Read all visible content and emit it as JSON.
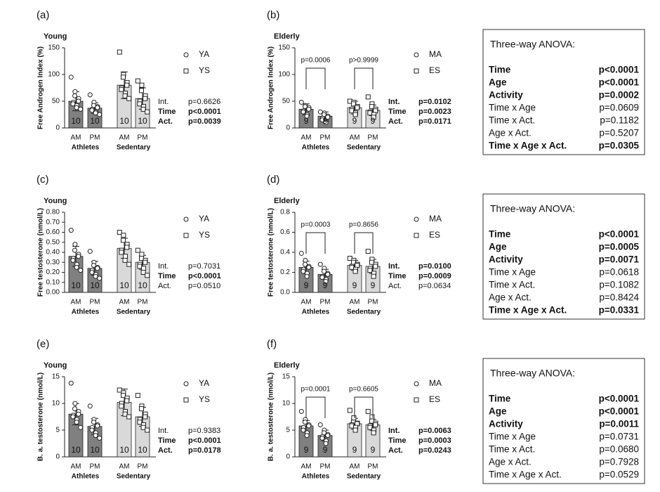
{
  "chart_data": [
    {
      "type": "bar",
      "panel": "(a)",
      "title": "Young",
      "y_label": "Free Androgen Index (%)",
      "ylim": [
        0,
        150
      ],
      "yticks": [
        0,
        50,
        100,
        150
      ],
      "categories": [
        "AM",
        "PM",
        "AM",
        "PM"
      ],
      "groups": [
        "Athletes",
        "Sedentary"
      ],
      "colors": [
        "#808080",
        "#808080",
        "#d9d9d9",
        "#d9d9d9"
      ],
      "values": [
        50,
        37,
        80,
        55
      ],
      "errors": [
        18,
        10,
        25,
        20
      ],
      "n": [
        10,
        10,
        10,
        10
      ],
      "points": [
        [
          95,
          68,
          60,
          55,
          50,
          48,
          45,
          42,
          38,
          35
        ],
        [
          62,
          48,
          42,
          40,
          38,
          35,
          33,
          30,
          28,
          25
        ],
        [
          142,
          100,
          95,
          85,
          80,
          75,
          72,
          65,
          60,
          55
        ],
        [
          88,
          80,
          70,
          60,
          55,
          50,
          45,
          40,
          35,
          30
        ]
      ],
      "legend": [
        {
          "marker": "circle",
          "label": "YA"
        },
        {
          "marker": "square",
          "label": "YS"
        }
      ],
      "stats": [
        {
          "label": "Int.",
          "value": "p=0.6626",
          "bold": false
        },
        {
          "label": "Time",
          "value": "p<0.0001",
          "bold": true
        },
        {
          "label": "Act.",
          "value": "p=0.0039",
          "bold": true
        }
      ]
    },
    {
      "type": "bar",
      "panel": "(b)",
      "title": "Elderly",
      "y_label": "Free Androgen Index (%)",
      "ylim": [
        0,
        150
      ],
      "yticks": [
        0,
        50,
        100,
        150
      ],
      "categories": [
        "AM",
        "PM",
        "AM",
        "PM"
      ],
      "groups": [
        "Athletes",
        "Sedentary"
      ],
      "colors": [
        "#808080",
        "#808080",
        "#d9d9d9",
        "#d9d9d9"
      ],
      "values": [
        35,
        22,
        38,
        33
      ],
      "errors": [
        10,
        8,
        12,
        10
      ],
      "n": [
        9,
        9,
        9,
        9
      ],
      "points": [
        [
          48,
          42,
          40,
          38,
          35,
          32,
          30,
          25,
          22
        ],
        [
          30,
          28,
          25,
          22,
          20,
          18,
          15,
          12,
          10
        ],
        [
          50,
          48,
          45,
          40,
          38,
          35,
          32,
          28,
          25
        ],
        [
          58,
          45,
          40,
          35,
          32,
          30,
          28,
          25,
          20
        ]
      ],
      "comparisons": [
        "p=0.0006",
        "p>0.9999"
      ],
      "legend": [
        {
          "marker": "circle",
          "label": "MA"
        },
        {
          "marker": "square",
          "label": "ES"
        }
      ],
      "stats": [
        {
          "label": "Int.",
          "value": "p=0.0102",
          "bold": true
        },
        {
          "label": "Time",
          "value": "p=0.0023",
          "bold": true
        },
        {
          "label": "Act.",
          "value": "p=0.0171",
          "bold": true
        }
      ]
    },
    {
      "type": "bar",
      "panel": "(c)",
      "title": "Young",
      "y_label": "Free testosterone (nmol/L)",
      "ylim": [
        0,
        0.8
      ],
      "yticks": [
        {
          "value": 0,
          "label": "0.00"
        },
        {
          "value": 0.1,
          "label": "0.10"
        },
        {
          "value": 0.2,
          "label": "0.20"
        },
        {
          "value": 0.3,
          "label": "0.30"
        },
        {
          "value": 0.4,
          "label": "0.40"
        },
        {
          "value": 0.5,
          "label": "0.50"
        },
        {
          "value": 0.6,
          "label": "0.60"
        },
        {
          "value": 0.7,
          "label": "0.70"
        },
        {
          "value": 0.8,
          "label": "0.80"
        }
      ],
      "categories": [
        "AM",
        "PM",
        "AM",
        "PM"
      ],
      "groups": [
        "Athletes",
        "Sedentary"
      ],
      "colors": [
        "#808080",
        "#808080",
        "#d9d9d9",
        "#d9d9d9"
      ],
      "values": [
        0.36,
        0.24,
        0.44,
        0.3
      ],
      "errors": [
        0.1,
        0.07,
        0.1,
        0.07
      ],
      "n": [
        10,
        10,
        10,
        10
      ],
      "points": [
        [
          0.62,
          0.48,
          0.42,
          0.38,
          0.36,
          0.34,
          0.32,
          0.28,
          0.25,
          0.22
        ],
        [
          0.41,
          0.3,
          0.27,
          0.25,
          0.24,
          0.22,
          0.2,
          0.18,
          0.16,
          0.14
        ],
        [
          0.6,
          0.57,
          0.52,
          0.48,
          0.45,
          0.42,
          0.4,
          0.36,
          0.32,
          0.28
        ],
        [
          0.42,
          0.38,
          0.34,
          0.32,
          0.3,
          0.28,
          0.26,
          0.24,
          0.2,
          0.17
        ]
      ],
      "legend": [
        {
          "marker": "circle",
          "label": "YA"
        },
        {
          "marker": "square",
          "label": "YS"
        }
      ],
      "stats": [
        {
          "label": "Int.",
          "value": "p=0.7031",
          "bold": false
        },
        {
          "label": "Time",
          "value": "p<0.0001",
          "bold": true
        },
        {
          "label": "Act.",
          "value": "p=0.0510",
          "bold": false
        }
      ]
    },
    {
      "type": "bar",
      "panel": "(d)",
      "title": "Elderly",
      "y_label": "Free testosterone (nmol/L)",
      "ylim": [
        0,
        0.8
      ],
      "yticks": [
        {
          "value": 0,
          "label": "0.0"
        },
        {
          "value": 0.2,
          "label": "0.2"
        },
        {
          "value": 0.4,
          "label": "0.4"
        },
        {
          "value": 0.6,
          "label": "0.6"
        },
        {
          "value": 0.8,
          "label": "0.8"
        }
      ],
      "categories": [
        "AM",
        "PM",
        "AM",
        "PM"
      ],
      "groups": [
        "Athletes",
        "Sedentary"
      ],
      "colors": [
        "#808080",
        "#808080",
        "#d9d9d9",
        "#d9d9d9"
      ],
      "values": [
        0.25,
        0.18,
        0.27,
        0.26
      ],
      "errors": [
        0.06,
        0.05,
        0.05,
        0.07
      ],
      "n": [
        9,
        9,
        9,
        9
      ],
      "points": [
        [
          0.39,
          0.32,
          0.28,
          0.26,
          0.25,
          0.23,
          0.21,
          0.19,
          0.16
        ],
        [
          0.28,
          0.24,
          0.21,
          0.19,
          0.18,
          0.16,
          0.15,
          0.13,
          0.11
        ],
        [
          0.34,
          0.32,
          0.3,
          0.28,
          0.27,
          0.26,
          0.25,
          0.23,
          0.21
        ],
        [
          0.41,
          0.33,
          0.3,
          0.28,
          0.26,
          0.24,
          0.22,
          0.19,
          0.16
        ]
      ],
      "comparisons": [
        "p=0.0003",
        "p=0.8656"
      ],
      "legend": [
        {
          "marker": "circle",
          "label": "MA"
        },
        {
          "marker": "square",
          "label": "ES"
        }
      ],
      "stats": [
        {
          "label": "Int.",
          "value": "p=0.0100",
          "bold": true
        },
        {
          "label": "Time",
          "value": "p=0.0009",
          "bold": true
        },
        {
          "label": "Act.",
          "value": "p=0.0634",
          "bold": false
        }
      ]
    },
    {
      "type": "bar",
      "panel": "(e)",
      "title": "Young",
      "y_label": "B. a. testosterone (nmol/L)",
      "ylim": [
        0,
        15
      ],
      "yticks": [
        0,
        5,
        10,
        15
      ],
      "categories": [
        "AM",
        "PM",
        "AM",
        "PM"
      ],
      "groups": [
        "Athletes",
        "Sedentary"
      ],
      "colors": [
        "#808080",
        "#808080",
        "#d9d9d9",
        "#d9d9d9"
      ],
      "values": [
        8,
        5.7,
        10.2,
        7.5
      ],
      "errors": [
        2,
        1.5,
        2.5,
        1.8
      ],
      "n": [
        10,
        10,
        10,
        10
      ],
      "points": [
        [
          13.8,
          10,
          9,
          8.5,
          8,
          7.8,
          7.5,
          7,
          6.5,
          5.5
        ],
        [
          9.5,
          7,
          6.5,
          6,
          5.8,
          5.5,
          5,
          4.5,
          4,
          3.5
        ],
        [
          12.5,
          12,
          11.5,
          11,
          10.5,
          10,
          9.5,
          8.5,
          8,
          7.5
        ],
        [
          11.5,
          9.5,
          9,
          8,
          7.5,
          7,
          6.5,
          6,
          5.5,
          5
        ]
      ],
      "legend": [
        {
          "marker": "circle",
          "label": "YA"
        },
        {
          "marker": "square",
          "label": "YS"
        }
      ],
      "stats": [
        {
          "label": "Int.",
          "value": "p=0.9383",
          "bold": false
        },
        {
          "label": "Time",
          "value": "p<0.0001",
          "bold": true
        },
        {
          "label": "Act.",
          "value": "p=0.0178",
          "bold": true
        }
      ]
    },
    {
      "type": "bar",
      "panel": "(f)",
      "title": "Elderly",
      "y_label": "B. a. testosterone (nmol/L)",
      "ylim": [
        0,
        15
      ],
      "yticks": [
        0,
        5,
        10,
        15
      ],
      "categories": [
        "AM",
        "PM",
        "AM",
        "PM"
      ],
      "groups": [
        "Athletes",
        "Sedentary"
      ],
      "colors": [
        "#808080",
        "#808080",
        "#d9d9d9",
        "#d9d9d9"
      ],
      "values": [
        5.8,
        4,
        6.2,
        6
      ],
      "errors": [
        1,
        1,
        1,
        1
      ],
      "n": [
        9,
        9,
        9,
        9
      ],
      "points": [
        [
          8.5,
          7,
          6.5,
          6,
          5.8,
          5.5,
          5,
          4.5,
          4
        ],
        [
          6,
          5,
          4.5,
          4.2,
          4,
          3.8,
          3.5,
          3,
          2.5
        ],
        [
          8.7,
          7.3,
          6.5,
          6.3,
          6.2,
          6,
          5.8,
          5.5,
          5
        ],
        [
          8.5,
          7.5,
          6.7,
          6.3,
          6,
          5.8,
          5.5,
          5,
          4.5
        ]
      ],
      "comparisons": [
        "p=0.0001",
        "p=0.6605"
      ],
      "legend": [
        {
          "marker": "circle",
          "label": "MA"
        },
        {
          "marker": "square",
          "label": "ES"
        }
      ],
      "stats": [
        {
          "label": "Int.",
          "value": "p=0.0063",
          "bold": true
        },
        {
          "label": "Time",
          "value": "p=0.0003",
          "bold": true
        },
        {
          "label": "Act.",
          "value": "p=0.0243",
          "bold": true
        }
      ]
    }
  ],
  "anova_tables": [
    {
      "title": "Three-way ANOVA:",
      "rows": [
        {
          "term": "Time",
          "p": "p<0.0001",
          "bold": true
        },
        {
          "term": "Age",
          "p": "p<0.0001",
          "bold": true
        },
        {
          "term": "Activity",
          "p": "p=0.0002",
          "bold": true
        },
        {
          "term": "Time x Age",
          "p": "p=0.0609",
          "bold": false
        },
        {
          "term": "Time x Act.",
          "p": "p=0.1182",
          "bold": false
        },
        {
          "term": "Age x Act.",
          "p": "p=0.5207",
          "bold": false
        },
        {
          "term": "Time x Age x Act.",
          "p": "p=0.0305",
          "bold": true
        }
      ]
    },
    {
      "title": "Three-way ANOVA:",
      "rows": [
        {
          "term": "Time",
          "p": "p<0.0001",
          "bold": true
        },
        {
          "term": "Age",
          "p": "p=0.0005",
          "bold": true
        },
        {
          "term": "Activity",
          "p": "p=0.0071",
          "bold": true
        },
        {
          "term": "Time x Age",
          "p": "p=0.0618",
          "bold": false
        },
        {
          "term": "Time x Act.",
          "p": "p=0.1082",
          "bold": false
        },
        {
          "term": "Age x Act.",
          "p": "p=0.8424",
          "bold": false
        },
        {
          "term": "Time x Age x Act.",
          "p": "p=0.0331",
          "bold": true
        }
      ]
    },
    {
      "title": "Three-way ANOVA:",
      "rows": [
        {
          "term": "Time",
          "p": "p<0.0001",
          "bold": true
        },
        {
          "term": "Age",
          "p": "p<0.0001",
          "bold": true
        },
        {
          "term": "Activity",
          "p": "p=0.0011",
          "bold": true
        },
        {
          "term": "Time x Age",
          "p": "p=0.0731",
          "bold": false
        },
        {
          "term": "Time x Act.",
          "p": "p=0.0680",
          "bold": false
        },
        {
          "term": "Age x Act.",
          "p": "p=0.7928",
          "bold": false
        },
        {
          "term": "Time x Age x Act.",
          "p": "p=0.0529",
          "bold": false
        }
      ]
    }
  ]
}
